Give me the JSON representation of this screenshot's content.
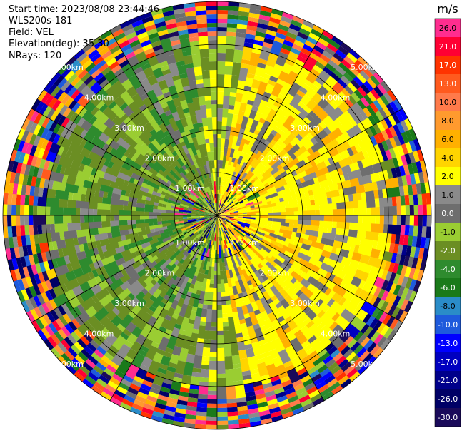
{
  "info": {
    "start_time": "Start time: 2023/08/08 23:44:46",
    "instrument": "WLS200s-181",
    "field": "Field: VEL",
    "elevation": "Elevation(deg): 35.30",
    "nrays": "NRays: 120"
  },
  "chart_data": {
    "type": "heatmap",
    "projection": "polar-ppi",
    "nrays": 120,
    "max_range_km": 5.0,
    "range_rings_km": [
      1,
      2,
      3,
      4,
      5
    ],
    "ring_labels": [
      "1.00km",
      "2.00km",
      "3.00km",
      "4.00km",
      "5.00km"
    ],
    "noise_begins_km": 4.0,
    "grid": true,
    "colorbar": {
      "unit": "m/s",
      "position": "right",
      "bins": [
        {
          "label": "26.0",
          "color": "#ff2d8f"
        },
        {
          "label": "21.0",
          "color": "#ff0033"
        },
        {
          "label": "17.0",
          "color": "#ff3300"
        },
        {
          "label": "13.0",
          "color": "#ff5a1e"
        },
        {
          "label": "10.0",
          "color": "#ff7a4a"
        },
        {
          "label": "8.0",
          "color": "#ff9a2e"
        },
        {
          "label": "6.0",
          "color": "#ffb000"
        },
        {
          "label": "4.0",
          "color": "#ffd400"
        },
        {
          "label": "2.0",
          "color": "#ffff00"
        },
        {
          "label": "1.0",
          "color": "#8a8a8a"
        },
        {
          "label": "0.0",
          "color": "#6e6e6e"
        },
        {
          "label": "-1.0",
          "color": "#9acd32"
        },
        {
          "label": "-2.0",
          "color": "#6b8e23"
        },
        {
          "label": "-4.0",
          "color": "#2e8b2e"
        },
        {
          "label": "-6.0",
          "color": "#1a7a1a"
        },
        {
          "label": "-8.0",
          "color": "#2a8cc8"
        },
        {
          "label": "-10.0",
          "color": "#1e5adc"
        },
        {
          "label": "-13.0",
          "color": "#0000ff"
        },
        {
          "label": "-17.0",
          "color": "#0000c0"
        },
        {
          "label": "-21.0",
          "color": "#00008b"
        },
        {
          "label": "-26.0",
          "color": "#000066"
        },
        {
          "label": "-30.0",
          "color": "#1a0a5a"
        }
      ]
    }
  }
}
